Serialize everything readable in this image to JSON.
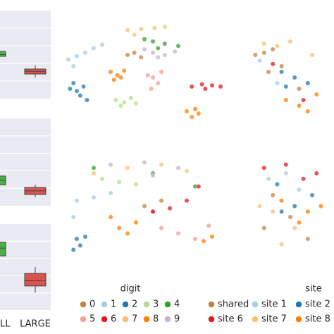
{
  "chart_data": [
    {
      "type": "box",
      "categories": [
        null,
        null
      ],
      "ylim": [
        0,
        100
      ],
      "yticks": [
        20,
        40,
        60,
        80
      ],
      "grid": true,
      "boxes": [
        {
          "color": "#4daf4a",
          "whislo": 44,
          "q1": 48,
          "median": 50,
          "q3": 53.6,
          "whishi": 58
        },
        {
          "color": "#d9534f",
          "whislo": 24,
          "q1": 28,
          "median": 31,
          "q3": 33.6,
          "whishi": 38
        }
      ]
    },
    {
      "type": "box",
      "categories": [
        null,
        null
      ],
      "ylim": [
        0,
        100
      ],
      "yticks": [
        20,
        40,
        60,
        80
      ],
      "grid": true,
      "boxes": [
        {
          "color": "#4daf4a",
          "whislo": 18,
          "q1": 24,
          "median": 29,
          "q3": 34,
          "whishi": 40
        },
        {
          "color": "#d9534f",
          "whislo": 10,
          "q1": 12.9,
          "median": 17,
          "q3": 20.9,
          "whishi": 24
        }
      ]
    },
    {
      "type": "box",
      "categories": [
        "LL",
        "LARGE"
      ],
      "ylim": [
        0,
        100
      ],
      "yticks": [
        20,
        40,
        60,
        80
      ],
      "grid": true,
      "boxes": [
        {
          "color": "#4daf4a",
          "whislo": 55,
          "q1": 63,
          "median": 72,
          "q3": 79,
          "whishi": 88
        },
        {
          "color": "#d9534f",
          "whislo": 20,
          "q1": 28,
          "median": 34,
          "q3": 42.6,
          "whishi": 50
        }
      ]
    },
    {
      "type": "scatter",
      "legend_title": "digit",
      "xlim": [
        0,
        100
      ],
      "ylim": [
        0,
        100
      ],
      "series": [
        {
          "name": "0",
          "color": "#c8803f",
          "x": [
            40,
            44,
            48
          ],
          "y": [
            70,
            72,
            68
          ]
        },
        {
          "name": "1",
          "color": "#a6cee3",
          "x": [
            5,
            10,
            15,
            20,
            25,
            8
          ],
          "y": [
            66,
            69,
            72,
            76,
            79,
            60
          ]
        },
        {
          "name": "2",
          "color": "#1f78b4",
          "x": [
            8,
            10,
            14,
            12,
            6,
            16
          ],
          "y": [
            45,
            38,
            42,
            34,
            40,
            30
          ]
        },
        {
          "name": "3",
          "color": "#b2df8a",
          "x": [
            33,
            38,
            42,
            36,
            45
          ],
          "y": [
            30,
            28,
            32,
            25,
            27
          ]
        },
        {
          "name": "4",
          "color": "#33a02c",
          "x": [
            55,
            62,
            70,
            50,
            58
          ],
          "y": [
            82,
            80,
            78,
            84,
            76
          ]
        },
        {
          "name": "5",
          "color": "#fb9a99",
          "x": [
            55,
            58,
            54,
            60,
            52
          ],
          "y": [
            50,
            45,
            40,
            55,
            52
          ]
        },
        {
          "name": "6",
          "color": "#e31a1c",
          "x": [
            78,
            84,
            90,
            86,
            95
          ],
          "y": [
            42,
            44,
            43,
            40,
            42
          ]
        },
        {
          "name": "7",
          "color": "#fdbf6f",
          "x": [
            40,
            48,
            56,
            62,
            44
          ],
          "y": [
            92,
            93,
            94,
            95,
            88
          ]
        },
        {
          "name": "8",
          "color": "#ff7f00",
          "x": [
            30,
            34,
            38,
            32,
            36,
            75,
            78,
            80,
            82
          ],
          "y": [
            55,
            52,
            56,
            48,
            50,
            20,
            15,
            22,
            18
          ]
        },
        {
          "name": "9",
          "color": "#cab2d6",
          "x": [
            50,
            55,
            62,
            68,
            58
          ],
          "y": [
            75,
            72,
            70,
            73,
            68
          ]
        }
      ]
    },
    {
      "type": "scatter",
      "legend_title": "site",
      "xlim": [
        0,
        100
      ],
      "ylim": [
        0,
        100
      ],
      "series": [
        {
          "name": "shared",
          "color": "#c8803f",
          "x": [
            10,
            20,
            30,
            40,
            25,
            60
          ],
          "y": [
            70,
            72,
            75,
            60,
            55,
            40
          ]
        },
        {
          "name": "site 1",
          "color": "#a6cee3",
          "x": [
            15,
            35
          ],
          "y": [
            65,
            45
          ]
        },
        {
          "name": "site 2",
          "color": "#1f78b4",
          "x": [
            40,
            55,
            45,
            70
          ],
          "y": [
            55,
            50,
            42,
            45
          ]
        },
        {
          "name": "site 6",
          "color": "#e31a1c",
          "x": [
            30,
            65
          ],
          "y": [
            62,
            30
          ]
        },
        {
          "name": "site 7",
          "color": "#fdbf6f",
          "x": [
            20,
            35,
            50,
            75
          ],
          "y": [
            80,
            78,
            82,
            70
          ]
        },
        {
          "name": "site 8",
          "color": "#ff7f00",
          "x": [
            45,
            60,
            80,
            70
          ],
          "y": [
            30,
            25,
            35,
            20
          ]
        }
      ]
    },
    {
      "type": "scatter",
      "xlim": [
        0,
        100
      ],
      "ylim": [
        0,
        100
      ],
      "series": [
        {
          "name": "0",
          "color": "#c8803f",
          "x": [
            50,
            55,
            60
          ],
          "y": [
            50,
            45,
            55
          ]
        },
        {
          "name": "1",
          "color": "#a6cee3",
          "x": [
            10,
            20,
            30,
            8
          ],
          "y": [
            55,
            58,
            62,
            40
          ]
        },
        {
          "name": "2",
          "color": "#1f78b4",
          "x": [
            10,
            12,
            15,
            8
          ],
          "y": [
            20,
            14,
            22,
            10
          ]
        },
        {
          "name": "3",
          "color": "#b2df8a",
          "x": [
            25,
            35,
            45
          ],
          "y": [
            75,
            72,
            70
          ]
        },
        {
          "name": "4",
          "color": "#33a02c",
          "x": [
            20,
            55,
            80
          ],
          "y": [
            85,
            80,
            68
          ]
        },
        {
          "name": "5",
          "color": "#fb9a99",
          "x": [
            60,
            70,
            80,
            88
          ],
          "y": [
            30,
            25,
            20,
            32
          ]
        },
        {
          "name": "6",
          "color": "#e31a1c",
          "x": [
            55,
            65,
            75,
            82
          ],
          "y": [
            45,
            48,
            55,
            68
          ]
        },
        {
          "name": "7",
          "color": "#fdbf6f",
          "x": [
            20,
            40,
            60,
            75
          ],
          "y": [
            80,
            85,
            88,
            82
          ]
        },
        {
          "name": "8",
          "color": "#ff7f00",
          "x": [
            35,
            40,
            45,
            85,
            90,
            30
          ],
          "y": [
            30,
            25,
            35,
            18,
            22,
            40
          ]
        },
        {
          "name": "9",
          "color": "#cab2d6",
          "x": [
            30,
            50,
            70,
            55
          ],
          "y": [
            88,
            90,
            85,
            78
          ]
        }
      ]
    },
    {
      "type": "scatter",
      "xlim": [
        0,
        100
      ],
      "ylim": [
        0,
        100
      ],
      "series": [
        {
          "name": "shared",
          "color": "#c8803f",
          "x": [
            30,
            50,
            20,
            70
          ],
          "y": [
            60,
            40,
            30,
            20
          ]
        },
        {
          "name": "site 1",
          "color": "#a6cee3",
          "x": [
            25,
            45,
            60
          ],
          "y": [
            75,
            80,
            65
          ]
        },
        {
          "name": "site 2",
          "color": "#1f78b4",
          "x": [
            35,
            55,
            40,
            75
          ],
          "y": [
            70,
            50,
            45,
            60
          ]
        },
        {
          "name": "site 6",
          "color": "#e31a1c",
          "x": [
            20,
            45,
            65,
            80
          ],
          "y": [
            85,
            88,
            75,
            80
          ]
        },
        {
          "name": "site 7",
          "color": "#fdbf6f",
          "x": [
            30,
            55,
            40,
            15
          ],
          "y": [
            45,
            30,
            15,
            50
          ]
        },
        {
          "name": "site 8",
          "color": "#ff7f00",
          "x": [
            40,
            60,
            70,
            85
          ],
          "y": [
            55,
            35,
            45,
            50
          ]
        }
      ]
    }
  ]
}
